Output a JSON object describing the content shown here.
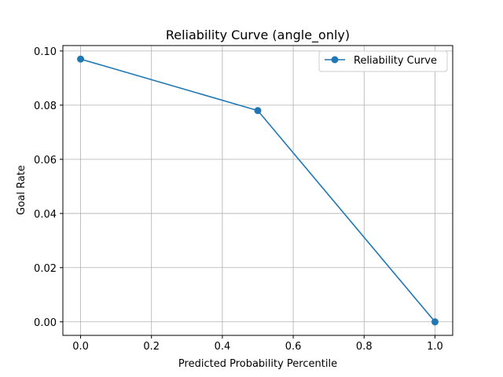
{
  "chart_data": {
    "type": "line",
    "title": "Reliability Curve (angle_only)",
    "xlabel": "Predicted Probability Percentile",
    "ylabel": "Goal Rate",
    "xlim": [
      -0.05,
      1.05
    ],
    "ylim": [
      -0.005,
      0.102
    ],
    "x_ticks": [
      0.0,
      0.2,
      0.4,
      0.6,
      0.8,
      1.0
    ],
    "x_tick_labels": [
      "0.0",
      "0.2",
      "0.4",
      "0.6",
      "0.8",
      "1.0"
    ],
    "y_ticks": [
      0.0,
      0.02,
      0.04,
      0.06,
      0.08,
      0.1
    ],
    "y_tick_labels": [
      "0.00",
      "0.02",
      "0.04",
      "0.06",
      "0.08",
      "0.10"
    ],
    "grid": true,
    "legend_position": "top-right",
    "series": [
      {
        "name": "Reliability Curve",
        "color": "#1f77b4",
        "marker": "circle",
        "x": [
          0.0,
          0.5,
          1.0
        ],
        "y": [
          0.097,
          0.078,
          0.0
        ]
      }
    ]
  }
}
